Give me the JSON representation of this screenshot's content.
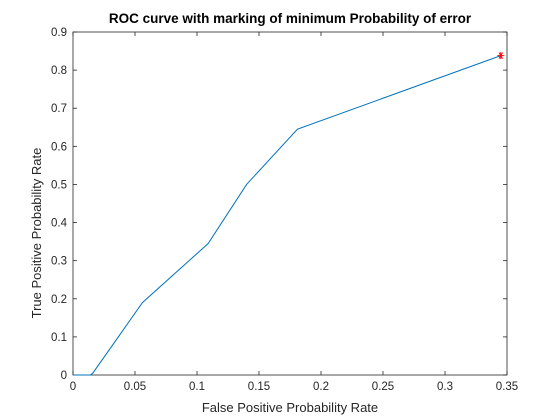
{
  "chart_data": {
    "type": "line",
    "title": "ROC curve with marking of minimum Probability of error",
    "xlabel": "False Positive Probability Rate",
    "ylabel": "True Positive Probability Rate",
    "xlim": [
      0,
      0.35
    ],
    "ylim": [
      0,
      0.9
    ],
    "xticks": [
      0,
      0.05,
      0.1,
      0.15,
      0.2,
      0.25,
      0.3,
      0.35
    ],
    "xtick_labels": [
      "0",
      "0.05",
      "0.1",
      "0.15",
      "0.2",
      "0.25",
      "0.3",
      "0.35"
    ],
    "yticks": [
      0,
      0.1,
      0.2,
      0.3,
      0.4,
      0.5,
      0.6,
      0.7,
      0.8,
      0.9
    ],
    "ytick_labels": [
      "0",
      "0.1",
      "0.2",
      "0.3",
      "0.4",
      "0.5",
      "0.6",
      "0.7",
      "0.8",
      "0.9"
    ],
    "series": [
      {
        "name": "ROC curve",
        "color": "#0072BD",
        "x": [
          0,
          0.014,
          0.016,
          0.056,
          0.109,
          0.14,
          0.181,
          0.345
        ],
        "y": [
          0,
          0,
          0.005,
          0.19,
          0.345,
          0.5,
          0.645,
          0.838
        ]
      }
    ],
    "marker": {
      "name": "minimum probability of error",
      "symbol": "*",
      "color": "#FF0000",
      "x": 0.345,
      "y": 0.838
    }
  }
}
